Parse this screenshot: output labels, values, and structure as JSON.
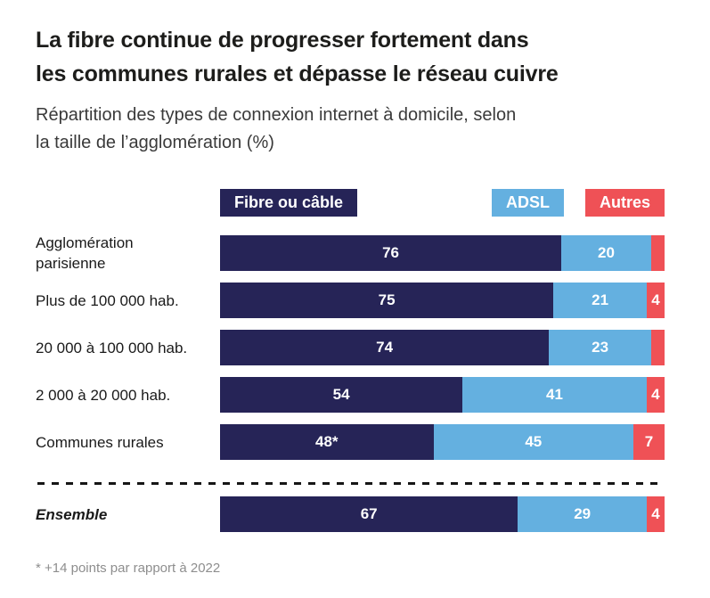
{
  "header": {
    "title_line1": "La fibre continue de progresser fortement dans",
    "title_line2": "les communes rurales et dépasse le réseau cuivre",
    "subtitle_line1": "Répartition des types de connexion internet à domicile, selon",
    "subtitle_line2": "la taille de l’agglomération (%)"
  },
  "legend": {
    "items": [
      {
        "label": "Fibre ou câble",
        "color": "#262457"
      },
      {
        "label": "ADSL",
        "color": "#64b0e0"
      },
      {
        "label": "Autres",
        "color": "#ef5156"
      }
    ]
  },
  "chart_data": {
    "type": "bar",
    "orientation": "horizontal",
    "stacked": true,
    "unit": "%",
    "xlim": [
      0,
      100
    ],
    "series_names": [
      "Fibre ou câble",
      "ADSL",
      "Autres"
    ],
    "series_colors": [
      "#262457",
      "#64b0e0",
      "#ef5156"
    ],
    "rows": [
      {
        "category": "Agglomération parisienne",
        "category_display": "Agglomération\nparisienne",
        "segments": [
          {
            "value": 76,
            "label": "76"
          },
          {
            "value": 20,
            "label": "20"
          },
          {
            "value": 3,
            "label": ""
          }
        ]
      },
      {
        "category": "Plus de 100 000 hab.",
        "segments": [
          {
            "value": 75,
            "label": "75"
          },
          {
            "value": 21,
            "label": "21"
          },
          {
            "value": 4,
            "label": "4"
          }
        ]
      },
      {
        "category": "20 000 à 100 000 hab.",
        "segments": [
          {
            "value": 74,
            "label": "74"
          },
          {
            "value": 23,
            "label": "23"
          },
          {
            "value": 3,
            "label": ""
          }
        ]
      },
      {
        "category": "2 000 à 20 000 hab.",
        "segments": [
          {
            "value": 54,
            "label": "54"
          },
          {
            "value": 41,
            "label": "41"
          },
          {
            "value": 4,
            "label": "4"
          }
        ]
      },
      {
        "category": "Communes rurales",
        "segments": [
          {
            "value": 48,
            "label": "48*"
          },
          {
            "value": 45,
            "label": "45"
          },
          {
            "value": 7,
            "label": "7"
          }
        ]
      }
    ],
    "summary_row": {
      "category": "Ensemble",
      "segments": [
        {
          "value": 67,
          "label": "67"
        },
        {
          "value": 29,
          "label": "29"
        },
        {
          "value": 4,
          "label": "4"
        }
      ]
    }
  },
  "footnote": "* +14 points par rapport à 2022"
}
